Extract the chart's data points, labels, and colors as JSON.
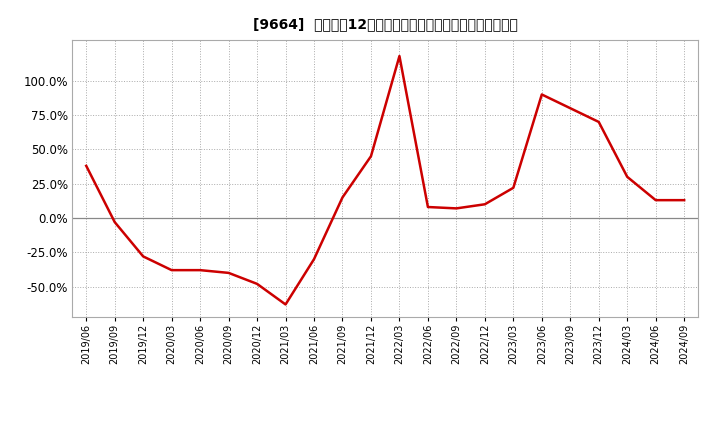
{
  "title": "[9664]  売上高の12か月移動合計の対前年同期増減率の推移",
  "line_color": "#cc0000",
  "background_color": "#ffffff",
  "grid_color": "#aaaaaa",
  "x_labels": [
    "2019/06",
    "2019/09",
    "2019/12",
    "2020/03",
    "2020/06",
    "2020/09",
    "2020/12",
    "2021/03",
    "2021/06",
    "2021/09",
    "2021/12",
    "2022/03",
    "2022/06",
    "2022/09",
    "2022/12",
    "2023/03",
    "2023/06",
    "2023/09",
    "2023/12",
    "2024/03",
    "2024/06",
    "2024/09"
  ],
  "values": [
    0.38,
    -0.03,
    -0.28,
    -0.38,
    -0.38,
    -0.4,
    -0.48,
    -0.63,
    -0.3,
    0.15,
    0.45,
    1.18,
    0.08,
    0.07,
    0.1,
    0.22,
    0.9,
    0.8,
    0.7,
    0.3,
    0.13,
    0.13
  ],
  "yticks": [
    -0.5,
    -0.25,
    0.0,
    0.25,
    0.5,
    0.75,
    1.0
  ],
  "ylim": [
    -0.72,
    1.3
  ],
  "title_prefix": "[9664]  ",
  "title_ja": "売上高の12か月移動合計の対前年同期増減率の推移"
}
